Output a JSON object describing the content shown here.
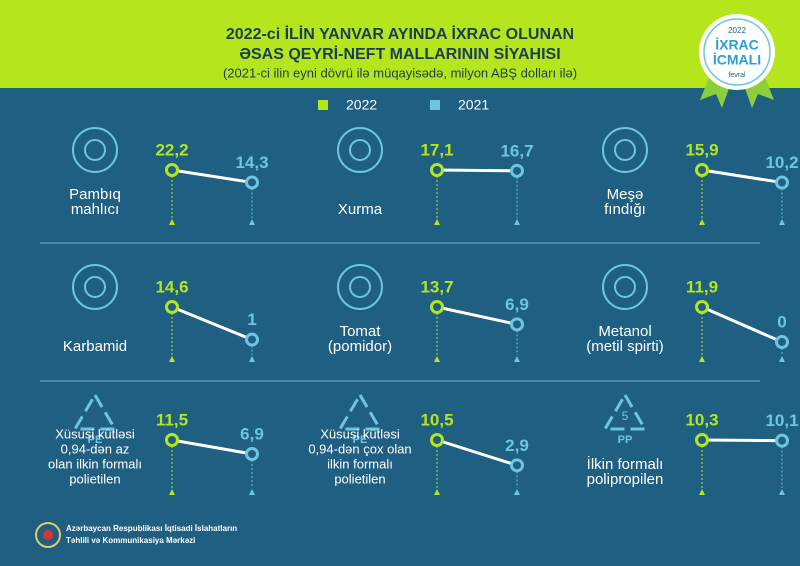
{
  "header": {
    "title": [
      "2022-ci İLİN YANVAR AYINDA İXRAC OLUNAN",
      "ƏSAS QEYRİ-NEFT MALLARININ SİYAHISI"
    ],
    "subtitle": "(2021-ci ilin eyni dövrü ilə müqayisədə, milyon ABŞ dolları ilə)"
  },
  "badge": {
    "year": "2022",
    "lines": [
      "İXRAC",
      "İCMALI"
    ],
    "month": "fevral"
  },
  "legend": [
    {
      "name": "2022",
      "color": "#b5e61d"
    },
    {
      "name": "2021",
      "color": "#6cc6e0"
    }
  ],
  "chart_data": [
    {
      "type": "slope",
      "title": [
        "Pambıq",
        "mahlıcı"
      ],
      "values": [
        22.2,
        14.3
      ],
      "value_labels": [
        "22,2",
        "14,3"
      ]
    },
    {
      "type": "slope",
      "title": [
        "Xurma"
      ],
      "values": [
        17.1,
        16.7
      ],
      "value_labels": [
        "17,1",
        "16,7"
      ]
    },
    {
      "type": "slope",
      "title": [
        "Meşə",
        "fındığı"
      ],
      "values": [
        15.9,
        10.2
      ],
      "value_labels": [
        "15,9",
        "10,2"
      ]
    },
    {
      "type": "slope",
      "title": [
        "Karbamid"
      ],
      "values": [
        14.6,
        1
      ],
      "value_labels": [
        "14,6",
        "1"
      ]
    },
    {
      "type": "slope",
      "title": [
        "Tomat",
        "(pomidor)"
      ],
      "values": [
        13.7,
        6.9
      ],
      "value_labels": [
        "13,7",
        "6,9"
      ]
    },
    {
      "type": "slope",
      "title": [
        "Metanol",
        "(metil spirti)"
      ],
      "values": [
        11.9,
        0
      ],
      "value_labels": [
        "11,9",
        "0"
      ]
    },
    {
      "type": "slope",
      "icon_label": "PE",
      "title": [
        "Xüsusi kütləsi",
        "0,94-dən az",
        "olan ilkin formalı",
        "polietilen"
      ],
      "values": [
        11.5,
        6.9
      ],
      "value_labels": [
        "11,5",
        "6,9"
      ]
    },
    {
      "type": "slope",
      "icon_label": "PE",
      "title": [
        "Xüsusi kütləsi",
        "0,94-dən çox olan",
        "ilkin formalı",
        "polietilen"
      ],
      "values": [
        10.5,
        2.9
      ],
      "value_labels": [
        "10,5",
        "2,9"
      ]
    },
    {
      "type": "slope",
      "icon_number": "5",
      "icon_label": "PP",
      "title": [
        "İlkin formalı",
        "polipropilen"
      ],
      "values": [
        10.3,
        10.1
      ],
      "value_labels": [
        "10,3",
        "10,1"
      ]
    }
  ],
  "footer": [
    "Azərbaycan Respublikası İqtisadi İslahatların",
    "Təhlili və Kommunikasiya Mərkəzi"
  ]
}
